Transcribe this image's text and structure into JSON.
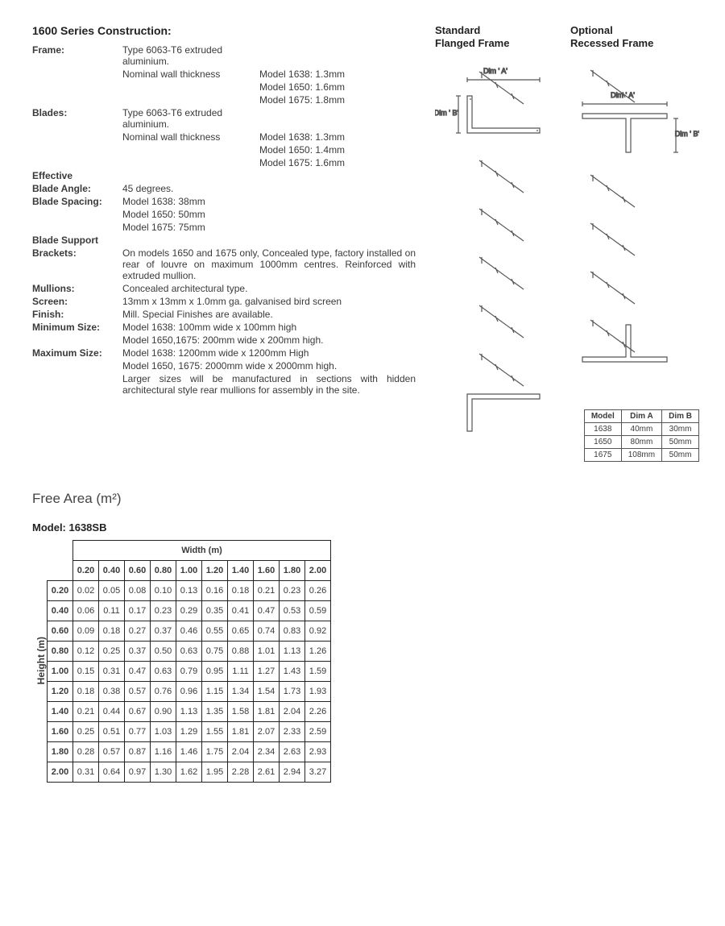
{
  "construction": {
    "title": "1600 Series Construction:",
    "rows": [
      {
        "label": "Frame:",
        "sub": "Type 6063-T6 extruded aluminium.",
        "val": ""
      },
      {
        "label": "",
        "sub": "Nominal wall thickness",
        "val": "Model 1638: 1.3mm"
      },
      {
        "label": "",
        "sub": "",
        "val": "Model 1650: 1.6mm"
      },
      {
        "label": "",
        "sub": "",
        "val": "Model 1675: 1.8mm"
      },
      {
        "label": "Blades:",
        "sub": "Type 6063-T6 extruded aluminium.",
        "val": ""
      },
      {
        "label": "",
        "sub": "Nominal wall thickness",
        "val": "Model 1638: 1.3mm"
      },
      {
        "label": "",
        "sub": "",
        "val": "Model 1650: 1.4mm"
      },
      {
        "label": "",
        "sub": "",
        "val": "Model 1675: 1.6mm"
      },
      {
        "label": "Effective",
        "sub": "",
        "val": ""
      },
      {
        "label": "Blade Angle:",
        "sub": "45 degrees.",
        "val": ""
      },
      {
        "label": "Blade Spacing:",
        "sub": "Model 1638: 38mm",
        "val": ""
      },
      {
        "label": "",
        "sub": "Model 1650: 50mm",
        "val": ""
      },
      {
        "label": "",
        "sub": "Model 1675: 75mm",
        "val": ""
      },
      {
        "label": "Blade Support",
        "sub": "",
        "val": ""
      },
      {
        "label": "Brackets:",
        "sub": "On models 1650 and 1675 only, Concealed type, factory installed on rear of louvre on maximum 1000mm centres. Reinforced with extruded mullion.",
        "val": "",
        "span": true
      },
      {
        "label": "Mullions:",
        "sub": "Concealed architectural type.",
        "val": "",
        "span": true
      },
      {
        "label": "Screen:",
        "sub": "13mm x 13mm x 1.0mm ga. galvanised bird screen",
        "val": "",
        "span": true
      },
      {
        "label": "Finish:",
        "sub": "Mill. Special Finishes are available.",
        "val": "",
        "span": true
      },
      {
        "label": "Minimum Size:",
        "sub": "Model 1638: 100mm wide x 100mm high",
        "val": "",
        "span": true
      },
      {
        "label": "",
        "sub": "Model 1650,1675: 200mm wide x 200mm high.",
        "val": "",
        "span": true
      },
      {
        "label": "Maximum Size:",
        "sub": "Model 1638: 1200mm wide x 1200mm High",
        "val": "",
        "span": true
      },
      {
        "label": "",
        "sub": "Model 1650, 1675: 2000mm wide x 2000mm high.",
        "val": "",
        "span": true
      },
      {
        "label": "",
        "sub": "Larger sizes will be manufactured in sections with hidden architectural style rear mullions for assembly in the site.",
        "val": "",
        "span": true
      }
    ]
  },
  "diagrams": {
    "standard_title": "Standard\nFlanged Frame",
    "optional_title": "Optional\nRecessed Frame",
    "dim_a": "Dim ' A'",
    "dim_b": "Dim ' B'",
    "stroke": "#555555",
    "table": {
      "headers": [
        "Model",
        "Dim A",
        "Dim B"
      ],
      "rows": [
        [
          "1638",
          "40mm",
          "30mm"
        ],
        [
          "1650",
          "80mm",
          "50mm"
        ],
        [
          "1675",
          "108mm",
          "50mm"
        ]
      ]
    }
  },
  "free_area": {
    "title": "Free Area (m²)",
    "model_title": "Model: 1638SB",
    "width_label": "Width (m)",
    "height_label": "Height (m)",
    "widths": [
      "0.20",
      "0.40",
      "0.60",
      "0.80",
      "1.00",
      "1.20",
      "1.40",
      "1.60",
      "1.80",
      "2.00"
    ],
    "heights": [
      "0.20",
      "0.40",
      "0.60",
      "0.80",
      "1.00",
      "1.20",
      "1.40",
      "1.60",
      "1.80",
      "2.00"
    ],
    "values": [
      [
        "0.02",
        "0.05",
        "0.08",
        "0.10",
        "0.13",
        "0.16",
        "0.18",
        "0.21",
        "0.23",
        "0.26"
      ],
      [
        "0.06",
        "0.11",
        "0.17",
        "0.23",
        "0.29",
        "0.35",
        "0.41",
        "0.47",
        "0.53",
        "0.59"
      ],
      [
        "0.09",
        "0.18",
        "0.27",
        "0.37",
        "0.46",
        "0.55",
        "0.65",
        "0.74",
        "0.83",
        "0.92"
      ],
      [
        "0.12",
        "0.25",
        "0.37",
        "0.50",
        "0.63",
        "0.75",
        "0.88",
        "1.01",
        "1.13",
        "1.26"
      ],
      [
        "0.15",
        "0.31",
        "0.47",
        "0.63",
        "0.79",
        "0.95",
        "1.11",
        "1.27",
        "1.43",
        "1.59"
      ],
      [
        "0.18",
        "0.38",
        "0.57",
        "0.76",
        "0.96",
        "1.15",
        "1.34",
        "1.54",
        "1.73",
        "1.93"
      ],
      [
        "0.21",
        "0.44",
        "0.67",
        "0.90",
        "1.13",
        "1.35",
        "1.58",
        "1.81",
        "2.04",
        "2.26"
      ],
      [
        "0.25",
        "0.51",
        "0.77",
        "1.03",
        "1.29",
        "1.55",
        "1.81",
        "2.07",
        "2.33",
        "2.59"
      ],
      [
        "0.28",
        "0.57",
        "0.87",
        "1.16",
        "1.46",
        "1.75",
        "2.04",
        "2.34",
        "2.63",
        "2.93"
      ],
      [
        "0.31",
        "0.64",
        "0.97",
        "1.30",
        "1.62",
        "1.95",
        "2.28",
        "2.61",
        "2.94",
        "3.27"
      ]
    ]
  }
}
